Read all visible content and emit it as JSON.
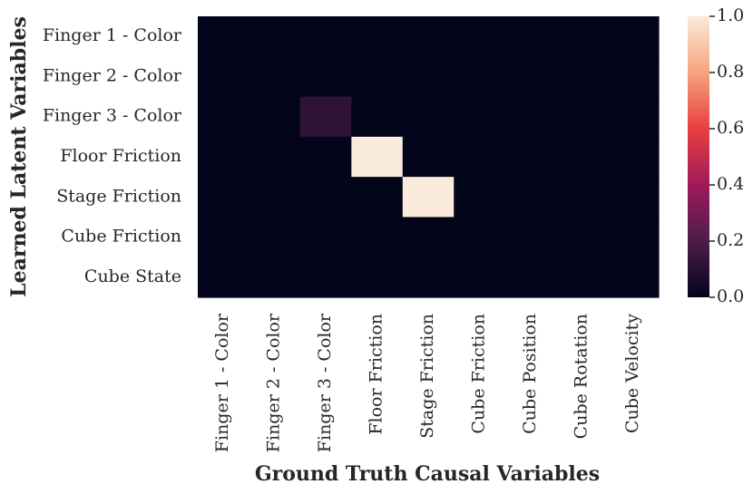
{
  "chart_data": {
    "type": "heatmap",
    "title": "",
    "xlabel": "Ground Truth Causal Variables",
    "ylabel": "Learned Latent Variables",
    "x_categories": [
      "Finger 1 - Color",
      "Finger 2 - Color",
      "Finger 3 - Color",
      "Floor Friction",
      "Stage Friction",
      "Cube Friction",
      "Cube Position",
      "Cube Rotation",
      "Cube Velocity"
    ],
    "y_categories": [
      "Finger 1 - Color",
      "Finger 2 - Color",
      "Finger 3 - Color",
      "Floor Friction",
      "Stage Friction",
      "Cube Friction",
      "Cube State"
    ],
    "values": [
      [
        0.0,
        0.0,
        0.0,
        0.0,
        0.0,
        0.0,
        0.0,
        0.0,
        0.0
      ],
      [
        0.0,
        0.0,
        0.0,
        0.0,
        0.0,
        0.0,
        0.0,
        0.0,
        0.0
      ],
      [
        0.0,
        0.0,
        0.12,
        0.0,
        0.0,
        0.0,
        0.0,
        0.0,
        0.0
      ],
      [
        0.0,
        0.0,
        0.0,
        1.0,
        0.0,
        0.0,
        0.0,
        0.0,
        0.0
      ],
      [
        0.0,
        0.0,
        0.0,
        0.0,
        1.0,
        0.0,
        0.0,
        0.0,
        0.0
      ],
      [
        0.0,
        0.0,
        0.0,
        0.0,
        0.0,
        0.0,
        0.0,
        0.0,
        0.0
      ],
      [
        0.0,
        0.0,
        0.0,
        0.0,
        0.0,
        0.0,
        0.0,
        0.0,
        0.0
      ]
    ],
    "colorbar": {
      "range": [
        0.0,
        1.0
      ],
      "ticks": [
        "0.0",
        "0.2",
        "0.4",
        "0.6",
        "0.8",
        "1.0"
      ],
      "colormap": "rocket",
      "colors": [
        "#03051a",
        "#4c1d4b",
        "#a11a5b",
        "#e83f3f",
        "#f6a47c",
        "#faebdd"
      ]
    },
    "grid": false,
    "legend": "colorbar-right"
  }
}
